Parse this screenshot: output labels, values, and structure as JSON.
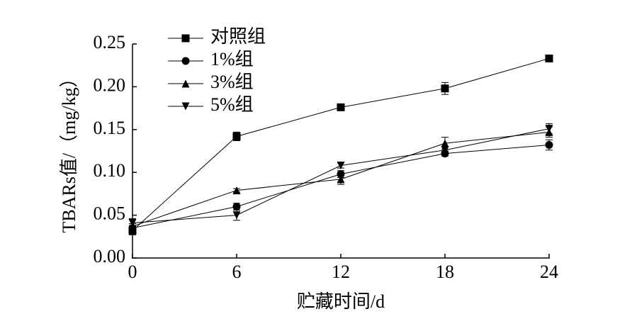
{
  "chart_data": {
    "type": "line",
    "x_label": "贮藏时间/d",
    "y_label": "TBARs值/（mg/kg）",
    "x": [
      0,
      6,
      12,
      18,
      24
    ],
    "xlim": [
      0,
      24
    ],
    "xticks": [
      0,
      6,
      12,
      18,
      24
    ],
    "ylim": [
      0,
      0.25
    ],
    "yticks": [
      {
        "value": 0,
        "label": "0.00"
      },
      {
        "value": 0.05,
        "label": "0.05"
      },
      {
        "value": 0.1,
        "label": "0.10"
      },
      {
        "value": 0.15,
        "label": "0.15"
      },
      {
        "value": 0.2,
        "label": "0.20"
      },
      {
        "value": 0.25,
        "label": "0.25"
      }
    ],
    "legend": "upper-left",
    "series": [
      {
        "name": "对照组",
        "color": "#000000",
        "marker": "square",
        "values": [
          0.032,
          0.142,
          0.176,
          0.198,
          0.233
        ],
        "errors": [
          0.005,
          0.005,
          0.002,
          0.007,
          0.002
        ]
      },
      {
        "name": "1%组",
        "color": "#000000",
        "marker": "circle",
        "values": [
          0.035,
          0.06,
          0.098,
          0.122,
          0.132
        ],
        "errors": [
          0.003,
          0.004,
          0.004,
          0.003,
          0.006
        ]
      },
      {
        "name": "3%组",
        "color": "#000000",
        "marker": "triangle-up",
        "values": [
          0.037,
          0.079,
          0.092,
          0.134,
          0.147
        ],
        "errors": [
          0.003,
          0.002,
          0.006,
          0.007,
          0.006
        ]
      },
      {
        "name": "5%组",
        "color": "#000000",
        "marker": "triangle-down",
        "values": [
          0.041,
          0.05,
          0.108,
          0.126,
          0.151
        ],
        "errors": [
          0.005,
          0.006,
          0.003,
          0.004,
          0.006
        ]
      }
    ]
  }
}
